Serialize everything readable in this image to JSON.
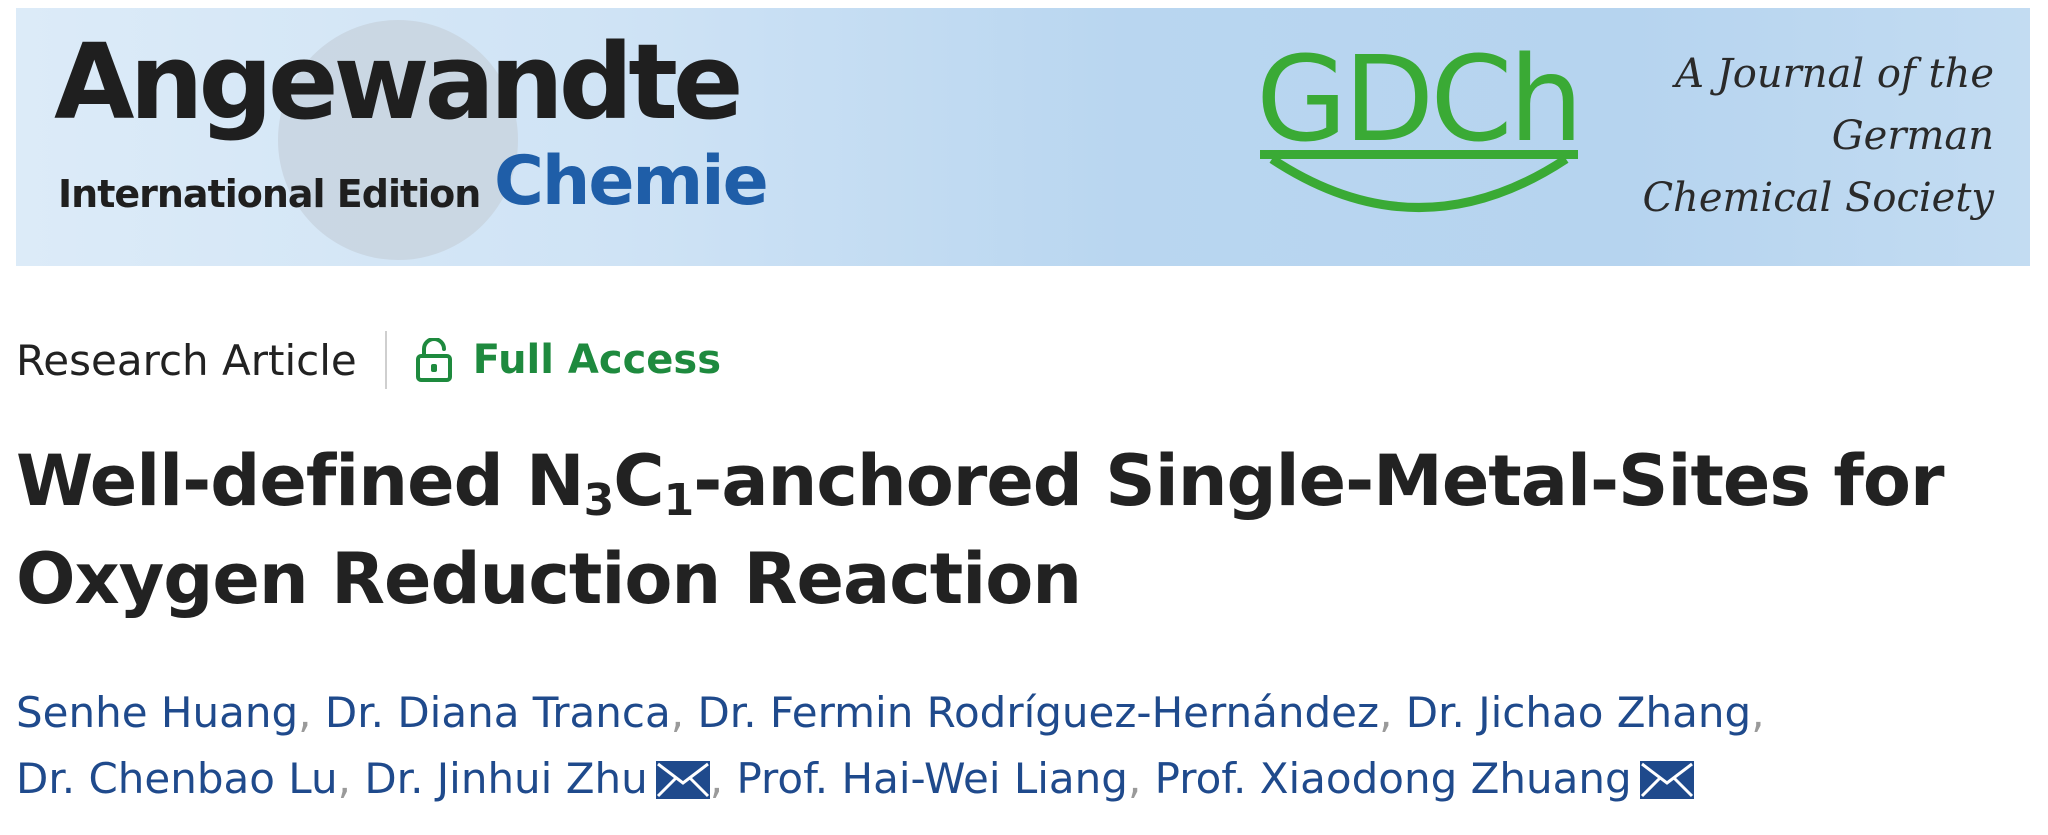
{
  "banner": {
    "brand_main": "Angewandte",
    "brand_edition": "International Edition",
    "brand_sub": "Chemie",
    "society_logo": "GDCh",
    "tagline_lines": [
      "A Journal of the",
      "German",
      "Chemical Society"
    ],
    "colors": {
      "background": "#b9d6f0",
      "brand_blue": "#1f5ea8",
      "gdch_green": "#3aaa35"
    }
  },
  "article": {
    "type": "Research Article",
    "access_label": "Full Access",
    "access_icon": "open-lock-icon",
    "access_color": "#1e8a3e",
    "title_parts": {
      "part1": "Well-defined N",
      "sub1": "3",
      "part2": "C",
      "sub2": "1",
      "part3": "-anchored Single-Metal-Sites for",
      "line2": "Oxygen Reduction Reaction"
    }
  },
  "authors": {
    "link_color": "#1f4a8c",
    "list": [
      {
        "name": "Senhe Huang"
      },
      {
        "name": "Dr. Diana Tranca"
      },
      {
        "name": "Dr. Fermin Rodríguez-Hernández"
      },
      {
        "name": "Dr. Jichao Zhang"
      },
      {
        "name": "Dr. Chenbao Lu"
      },
      {
        "name": "Dr. Jinhui Zhu",
        "contact_icon": "envelope-icon"
      },
      {
        "name": "Prof. Hai-Wei Liang"
      },
      {
        "name": "Prof. Xiaodong Zhuang",
        "contact_icon": "envelope-icon"
      }
    ],
    "separator": ","
  }
}
